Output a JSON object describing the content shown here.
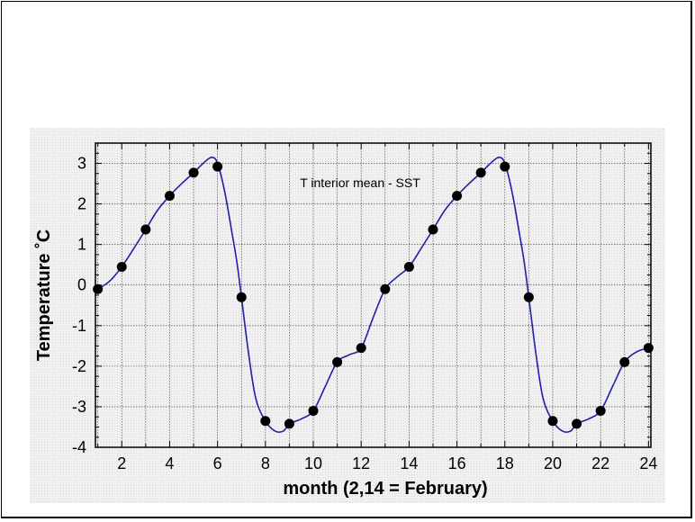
{
  "chart_data": {
    "type": "line",
    "title": "",
    "annotation": "T interior mean - SST",
    "xlabel": "month (2,14 = February)",
    "ylabel": "Temperature ˚C",
    "xlim": [
      0.9,
      24.1
    ],
    "ylim": [
      -4,
      3.5
    ],
    "xticks": [
      2,
      4,
      6,
      8,
      10,
      12,
      14,
      16,
      18,
      20,
      22,
      24
    ],
    "yticks": [
      3,
      2,
      1,
      0,
      -1,
      -2,
      -3,
      -4
    ],
    "grid": true,
    "series": [
      {
        "name": "",
        "color": "#000000",
        "marker": "circle",
        "x": [
          1,
          2,
          3,
          4,
          5,
          6,
          7,
          8,
          9,
          10,
          11,
          12,
          13,
          14,
          15,
          16,
          17,
          18,
          19,
          20,
          21,
          22,
          23,
          24
        ],
        "y": [
          -0.1,
          0.45,
          1.37,
          2.2,
          2.77,
          2.92,
          -0.3,
          -3.35,
          -3.42,
          -3.1,
          -1.9,
          -1.55,
          -0.1,
          0.45,
          1.37,
          2.2,
          2.77,
          2.92,
          -0.3,
          -3.35,
          -3.42,
          -3.1,
          -1.9,
          -1.55
        ]
      }
    ],
    "curve": {
      "color": "#1f1fa8",
      "x": [
        1,
        1.5,
        2,
        2.5,
        3,
        3.5,
        4,
        4.5,
        5,
        5.4,
        5.75,
        6,
        6.3,
        6.6,
        6.8,
        7,
        7.3,
        7.6,
        8,
        8.4,
        8.75,
        9,
        9.5,
        10,
        10.5,
        11,
        11.5,
        12,
        12.5,
        13,
        13.5,
        14,
        14.5,
        15,
        15.5,
        16,
        16.5,
        17,
        17.4,
        17.75,
        18,
        18.3,
        18.6,
        18.8,
        19,
        19.3,
        19.6,
        20,
        20.4,
        20.75,
        21,
        21.5,
        22,
        22.5,
        23,
        23.5,
        24
      ],
      "y": [
        -0.1,
        0.1,
        0.45,
        0.9,
        1.37,
        1.85,
        2.2,
        2.5,
        2.77,
        3.0,
        3.15,
        3.0,
        2.3,
        1.3,
        0.6,
        -0.3,
        -1.7,
        -2.8,
        -3.35,
        -3.6,
        -3.6,
        -3.42,
        -3.3,
        -3.1,
        -2.5,
        -1.9,
        -1.72,
        -1.55,
        -0.8,
        -0.1,
        0.2,
        0.45,
        0.9,
        1.37,
        1.85,
        2.2,
        2.5,
        2.77,
        3.0,
        3.15,
        3.0,
        2.3,
        1.3,
        0.6,
        -0.3,
        -1.7,
        -2.8,
        -3.35,
        -3.6,
        -3.6,
        -3.42,
        -3.3,
        -3.1,
        -2.5,
        -1.9,
        -1.65,
        -1.55
      ]
    }
  }
}
